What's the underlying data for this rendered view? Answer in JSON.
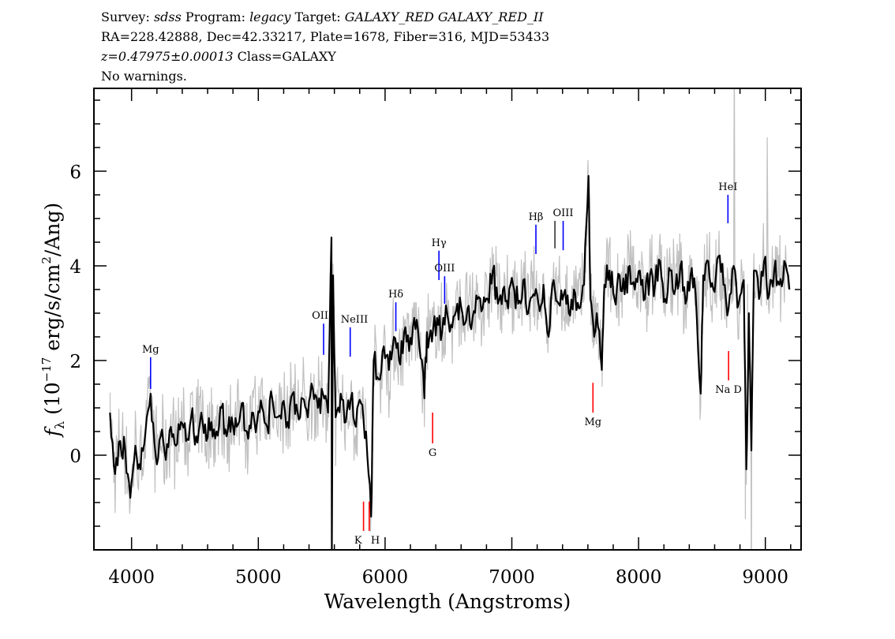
{
  "header": {
    "line1": {
      "survey_label": "Survey:",
      "survey": "sdss",
      "program_label": "Program:",
      "program": "legacy",
      "target_label": "Target:",
      "target": "GALAXY_RED GALAXY_RED_II"
    },
    "line2": "RA=228.42888, Dec=42.33217, Plate=1678, Fiber=316, MJD=53433",
    "line3": {
      "z": "z=0.47975±0.00013",
      "class": "Class=GALAXY"
    },
    "line4": "No warnings."
  },
  "chart_data": {
    "type": "line",
    "xlabel": "Wavelength (Angstroms)",
    "ylabel": "f_λ (10^-17 erg/s/cm^2/Ang)",
    "ylabel_parts": {
      "f": "f",
      "sub": "λ",
      "pre": " (10",
      "exp": "−17",
      "mid": " erg/s/cm",
      "exp2": "2",
      "post": "/Ang)"
    },
    "xlim": [
      3703,
      9282
    ],
    "ylim": [
      -2,
      7.75
    ],
    "x_ticks": [
      4000,
      5000,
      6000,
      7000,
      8000,
      9000
    ],
    "x_tick_labels": [
      "4000",
      "5000",
      "6000",
      "7000",
      "8000",
      "9000"
    ],
    "y_ticks": [
      0,
      2,
      4,
      6
    ],
    "y_tick_labels": [
      "0",
      "2",
      "4",
      "6"
    ],
    "grid": false,
    "colors": {
      "flux": "#000000",
      "error_band": "#c0c0c0",
      "emission": "#0000ff",
      "absorption": "#ff0000"
    },
    "series": [
      {
        "kind": "flux",
        "x": [
          3830,
          3870,
          3910,
          3950,
          3990,
          4030,
          4070,
          4110,
          4150,
          4190,
          4230,
          4270,
          4310,
          4350,
          4390,
          4430,
          4470,
          4510,
          4550,
          4590,
          4630,
          4670,
          4710,
          4750,
          4790,
          4830,
          4870,
          4910,
          4950,
          4990,
          5030,
          5070,
          5110,
          5150,
          5190,
          5230,
          5270,
          5310,
          5350,
          5390,
          5430,
          5470,
          5510,
          5550,
          5577,
          5580,
          5590,
          5610,
          5650,
          5690,
          5730,
          5770,
          5810,
          5850,
          5890,
          5910,
          5950,
          5990,
          6030,
          6070,
          6110,
          6150,
          6190,
          6230,
          6270,
          6310,
          6330,
          6370,
          6410,
          6450,
          6490,
          6530,
          6570,
          6610,
          6650,
          6690,
          6730,
          6770,
          6810,
          6850,
          6890,
          6930,
          6970,
          7010,
          7050,
          7090,
          7130,
          7170,
          7210,
          7250,
          7290,
          7330,
          7370,
          7410,
          7450,
          7490,
          7530,
          7570,
          7605,
          7620,
          7650,
          7670,
          7710,
          7730,
          7770,
          7810,
          7850,
          7890,
          7930,
          7970,
          8010,
          8050,
          8090,
          8130,
          8170,
          8210,
          8250,
          8290,
          8330,
          8370,
          8410,
          8450,
          8490,
          8510,
          8550,
          8590,
          8630,
          8670,
          8710,
          8750,
          8790,
          8830,
          8850,
          8870,
          8890,
          8910,
          8950,
          8990,
          9030,
          9070,
          9110,
          9150,
          9190
        ],
        "y": [
          0.9,
          -0.4,
          0.3,
          0.1,
          -0.9,
          0.2,
          -0.3,
          0.5,
          1.3,
          0.0,
          0.4,
          -0.1,
          0.6,
          0.2,
          0.7,
          0.3,
          0.8,
          0.4,
          0.9,
          0.3,
          0.7,
          0.5,
          1.0,
          0.4,
          0.8,
          0.6,
          1.1,
          0.5,
          0.9,
          0.7,
          1.0,
          0.6,
          1.2,
          0.8,
          1.1,
          0.7,
          1.3,
          0.9,
          1.2,
          0.8,
          1.4,
          1.0,
          1.3,
          0.9,
          4.6,
          -2.0,
          3.8,
          0.8,
          1.3,
          0.7,
          1.2,
          0.6,
          1.1,
          0.5,
          -1.3,
          2.0,
          1.6,
          2.3,
          1.8,
          2.5,
          2.0,
          2.6,
          2.2,
          2.9,
          2.3,
          1.2,
          2.6,
          2.4,
          2.9,
          2.6,
          3.0,
          2.7,
          3.2,
          3.0,
          3.1,
          2.9,
          3.3,
          3.1,
          3.3,
          3.9,
          3.2,
          3.5,
          3.1,
          3.6,
          3.2,
          3.7,
          3.0,
          3.4,
          3.2,
          3.6,
          2.5,
          3.7,
          3.2,
          3.4,
          3.0,
          3.5,
          3.1,
          3.6,
          5.9,
          3.3,
          2.5,
          3.0,
          1.8,
          3.6,
          3.9,
          3.3,
          3.8,
          3.4,
          4.0,
          3.5,
          3.9,
          3.3,
          3.8,
          3.6,
          4.1,
          3.3,
          3.9,
          3.5,
          4.0,
          3.2,
          3.8,
          3.4,
          1.3,
          3.8,
          4.1,
          3.5,
          4.2,
          3.6,
          3.1,
          4.0,
          3.2,
          3.7,
          -0.3,
          3.0,
          0.1,
          3.9,
          3.3,
          4.1,
          3.4,
          3.9,
          3.6,
          4.1,
          3.5
        ]
      }
    ],
    "annotations": [
      {
        "label": "Mg",
        "type": "emission",
        "wavelength": 4150,
        "flux_range": [
          1.4,
          2.07
        ]
      },
      {
        "label": "OII",
        "type": "emission",
        "wavelength": 5515,
        "flux_range": [
          2.12,
          2.78
        ]
      },
      {
        "label": "NeIII",
        "type": "emission",
        "wavelength": 5725,
        "flux_range": [
          2.08,
          2.7
        ]
      },
      {
        "label": "Hδ",
        "type": "emission",
        "wavelength": 6085,
        "flux_range": [
          2.62,
          3.23
        ]
      },
      {
        "label": "Hγ",
        "type": "emission",
        "wavelength": 6425,
        "flux_range": [
          3.7,
          4.32
        ]
      },
      {
        "label": "OIII",
        "type": "emission",
        "wavelength": 6470,
        "flux_range": [
          3.2,
          3.78
        ]
      },
      {
        "label": "Hβ",
        "type": "emission",
        "wavelength": 7190,
        "flux_range": [
          4.25,
          4.87
        ]
      },
      {
        "label": "",
        "type": "emission",
        "wavelength": 7340,
        "flux_range": [
          4.37,
          4.95
        ]
      },
      {
        "label": "OIII",
        "type": "emission",
        "wavelength": 7405,
        "flux_range": [
          4.33,
          4.95
        ]
      },
      {
        "label": "HeI",
        "type": "emission",
        "wavelength": 8705,
        "flux_range": [
          4.9,
          5.5
        ]
      },
      {
        "label": "K",
        "type": "absorption",
        "wavelength": 5830,
        "flux_range": [
          -1.6,
          -0.98
        ]
      },
      {
        "label": "H",
        "type": "absorption",
        "wavelength": 5875,
        "flux_range": [
          -1.6,
          -0.98
        ]
      },
      {
        "label": "G",
        "type": "absorption",
        "wavelength": 6375,
        "flux_range": [
          0.25,
          0.9
        ]
      },
      {
        "label": "Mg",
        "type": "absorption",
        "wavelength": 7640,
        "flux_range": [
          0.9,
          1.53
        ]
      },
      {
        "label": "Na D",
        "type": "absorption",
        "wavelength": 8710,
        "flux_range": [
          1.58,
          2.2
        ]
      }
    ]
  }
}
